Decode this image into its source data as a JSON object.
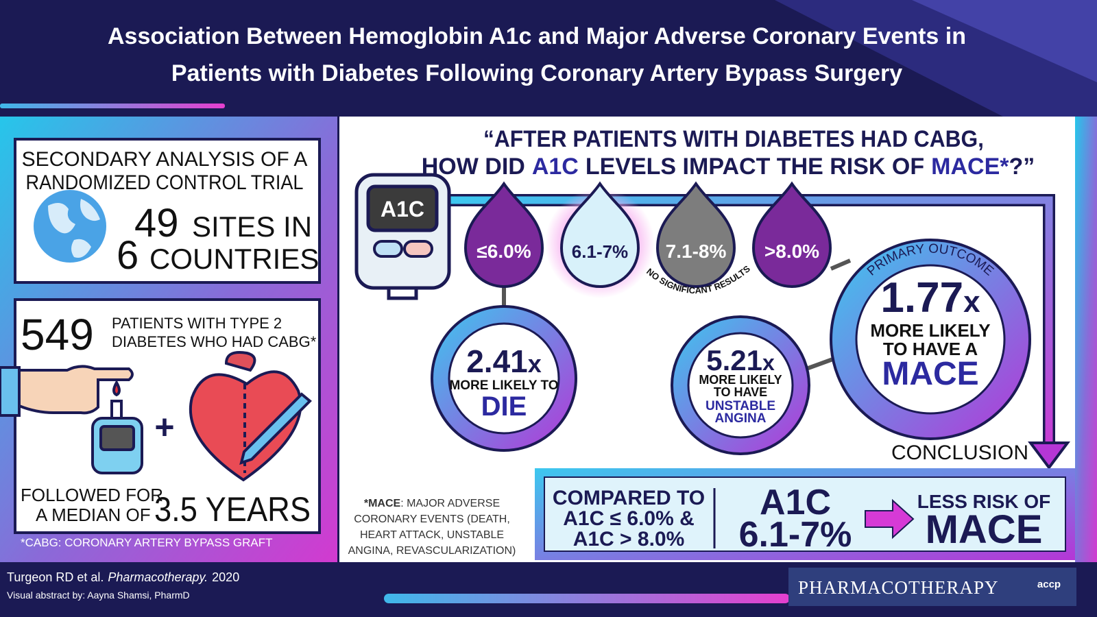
{
  "header": {
    "title_lines": [
      "Association Between Hemoglobin A1c and Major Adverse Coronary Events in",
      "Patients with Diabetes Following Coronary Artery Bypass Surgery"
    ]
  },
  "study": {
    "design_lines": [
      "SECONDARY ANALYSIS OF A",
      "RANDOMIZED CONTROL TRIAL"
    ],
    "sites": 49,
    "sites_label": "SITES IN",
    "countries": 6,
    "countries_label": "COUNTRIES"
  },
  "population": {
    "patients": 549,
    "patients_lines": [
      "PATIENTS WITH TYPE 2",
      "DIABETES WHO HAD CABG*"
    ],
    "followup_lines": [
      "FOLLOWED FOR",
      "A MEDIAN OF"
    ],
    "followup_duration": "3.5 YEARS"
  },
  "cabg_footnote": "*CABG: CORONARY ARTERY BYPASS GRAFT",
  "question": {
    "line1": "“AFTER PATIENTS WITH DIABETES HAD CABG,",
    "line2": [
      "HOW DID",
      "A1C",
      "LEVELS IMPACT THE RISK OF",
      "MACE*",
      "?”"
    ]
  },
  "meter_label": "A1C",
  "a1c_groups": [
    "≤6.0%",
    "6.1-7%",
    "7.1-8%",
    ">8.0%"
  ],
  "no_significance": "NO SIGNIFICANT RESULTS",
  "death_result": {
    "ratio": 2.41,
    "unit": "x",
    "lines": [
      "MORE LIKELY TO"
    ],
    "outcome": "DIE"
  },
  "angina_result": {
    "ratio": 5.21,
    "unit": "x",
    "lines": [
      "MORE LIKELY",
      "TO HAVE"
    ],
    "outcome_lines": [
      "UNSTABLE",
      "ANGINA"
    ]
  },
  "primary_outcome": {
    "label": "PRIMARY OUTCOME",
    "ratio": 1.77,
    "unit": "x",
    "lines": [
      "MORE LIKELY",
      "TO HAVE A"
    ],
    "outcome": "MACE"
  },
  "conclusion": {
    "heading": "CONCLUSION",
    "comparison_lines": [
      "COMPARED TO",
      "A1C ≤ 6.0% &",
      "A1C > 8.0%"
    ],
    "group_lines": [
      "A1C",
      "6.1-7%"
    ],
    "result_lines": [
      "LESS RISK OF",
      "MACE"
    ]
  },
  "mace_footnote": {
    "term": "*MACE",
    "definition_lines": [
      ": MAJOR ADVERSE",
      "CORONARY EVENTS (DEATH,",
      "HEART ATTACK, UNSTABLE",
      "ANGINA, REVASCULARIZATION)"
    ]
  },
  "footer": {
    "citation": "Turgeon RD et al.",
    "journal": "Pharmacotherapy.",
    "year": 2020,
    "credit": "Visual abstract by: Aayna Shamsi, PharmD",
    "logo": "PHARMACOTHERAPY",
    "logo_badge": "accp"
  }
}
